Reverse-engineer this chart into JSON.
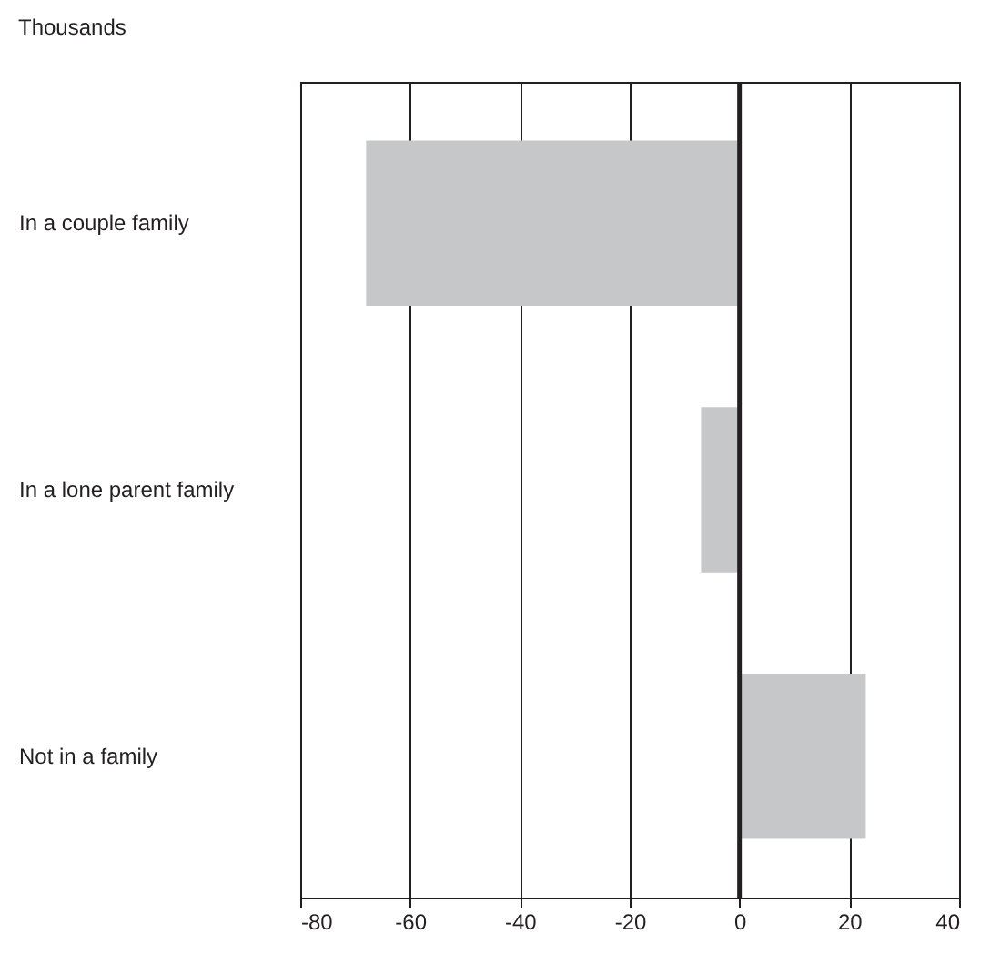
{
  "chart_data": {
    "type": "bar",
    "orientation": "horizontal",
    "subtitle": "Thousands",
    "categories": [
      "In a couple family",
      "In a lone parent family",
      "Not in a family"
    ],
    "values": [
      -68,
      -7,
      23
    ],
    "color": "#c6c7c9",
    "xlim": [
      -80,
      40
    ],
    "xticks": [
      -80,
      -60,
      -40,
      -20,
      0,
      20,
      40
    ],
    "grid": true,
    "ref_lines": [
      {
        "axis": "x",
        "value": 0,
        "color": "#231f20"
      }
    ]
  }
}
